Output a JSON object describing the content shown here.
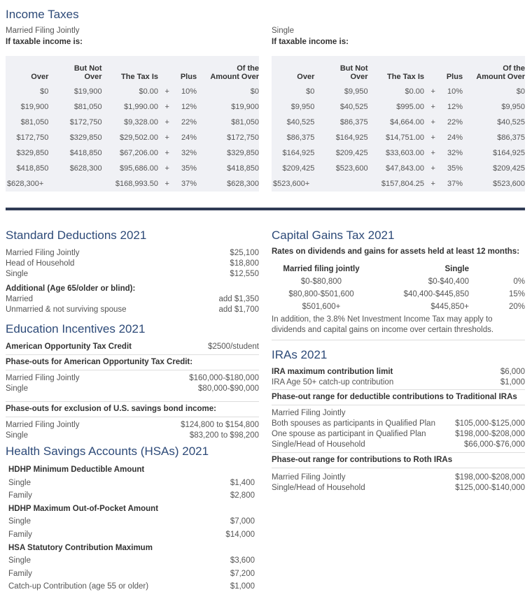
{
  "income_taxes": {
    "title": "Income Taxes",
    "tables": [
      {
        "label": "Married Filing Jointly",
        "condition": "If taxable income is:",
        "headers": [
          [
            "Over"
          ],
          [
            "But Not",
            "Over"
          ],
          [
            "The Tax Is"
          ],
          [
            "Plus"
          ],
          [
            "Of the",
            "Amount Over"
          ]
        ],
        "rows": [
          [
            "$0",
            "$19,900",
            "$0.00",
            "+",
            "10%",
            "$0"
          ],
          [
            "$19,900",
            "$81,050",
            "$1,990.00",
            "+",
            "12%",
            "$19,900"
          ],
          [
            "$81,050",
            "$172,750",
            "$9,328.00",
            "+",
            "22%",
            "$81,050"
          ],
          [
            "$172,750",
            "$329,850",
            "$29,502.00",
            "+",
            "24%",
            "$172,750"
          ],
          [
            "$329,850",
            "$418,850",
            "$67,206.00",
            "+",
            "32%",
            "$329,850"
          ],
          [
            "$418,850",
            "$628,300",
            "$95,686.00",
            "+",
            "35%",
            "$418,850"
          ],
          [
            "$628,300+",
            null,
            "$168,993.50",
            "+",
            "37%",
            "$628,300"
          ]
        ]
      },
      {
        "label": "Single",
        "condition": "If taxable income is:",
        "headers": [
          [
            "Over"
          ],
          [
            "But Not",
            "Over"
          ],
          [
            "The Tax Is"
          ],
          [
            "Plus"
          ],
          [
            "Of the",
            "Amount Over"
          ]
        ],
        "rows": [
          [
            "$0",
            "$9,950",
            "$0.00",
            "+",
            "10%",
            "$0"
          ],
          [
            "$9,950",
            "$40,525",
            "$995.00",
            "+",
            "12%",
            "$9,950"
          ],
          [
            "$40,525",
            "$86,375",
            "$4,664.00",
            "+",
            "22%",
            "$40,525"
          ],
          [
            "$86,375",
            "$164,925",
            "$14,751.00",
            "+",
            "24%",
            "$86,375"
          ],
          [
            "$164,925",
            "$209,425",
            "$33,603.00",
            "+",
            "32%",
            "$164,925"
          ],
          [
            "$209,425",
            "$523,600",
            "$47,843.00",
            "+",
            "35%",
            "$209,425"
          ],
          [
            "$523,600+",
            null,
            "$157,804.25",
            "+",
            "37%",
            "$523,600"
          ]
        ]
      }
    ]
  },
  "standard_deductions": {
    "title": "Standard Deductions 2021",
    "items": [
      {
        "label": "Married Filing Jointly",
        "value": "$25,100"
      },
      {
        "label": "Head of Household",
        "value": "$18,800"
      },
      {
        "label": "Single",
        "value": "$12,550"
      }
    ],
    "additional_heading": "Additional (Age 65/older or blind):",
    "additional": [
      {
        "label": "Married",
        "value": "add $1,350"
      },
      {
        "label": "Unmarried & not surviving spouse",
        "value": "add $1,700"
      }
    ]
  },
  "education": {
    "title": "Education Incentives 2021",
    "credit": {
      "label": "American Opportunity Tax Credit",
      "value": "$2500/student"
    },
    "groups": [
      {
        "heading": "Phase-outs for American Opportunity Tax Credit:",
        "items": [
          {
            "label": "Married Filing Jointly",
            "value": "$160,000-$180,000"
          },
          {
            "label": "Single",
            "value": "$80,000-$90,000"
          }
        ]
      },
      {
        "heading": "Phase-outs for exclusion of U.S. savings bond income:",
        "items": [
          {
            "label": "Married Filing Jointly",
            "value": "$124,800 to $154,800"
          },
          {
            "label": "Single",
            "value": "$83,200 to $98,200"
          }
        ]
      }
    ]
  },
  "hsa": {
    "title": "Health Savings Accounts (HSAs) 2021",
    "groups": [
      {
        "heading": "HDHP Minimum Deductible Amount",
        "items": [
          {
            "label": "Single",
            "value": "$1,400"
          },
          {
            "label": "Family",
            "value": "$2,800"
          }
        ]
      },
      {
        "heading": "HDHP Maximum Out-of-Pocket Amount",
        "items": [
          {
            "label": "Single",
            "value": "$7,000"
          },
          {
            "label": "Family",
            "value": "$14,000"
          }
        ]
      },
      {
        "heading": "HSA Statutory Contribution Maximum",
        "items": [
          {
            "label": "Single",
            "value": "$3,600"
          },
          {
            "label": "Family",
            "value": "$7,200"
          },
          {
            "label": "Catch-up Contribution (age 55 or older)",
            "value": "$1,000"
          }
        ]
      }
    ]
  },
  "capital_gains": {
    "title": "Capital Gains Tax 2021",
    "subtitle": "Rates on dividends and gains for assets held at least 12 months:",
    "headers": [
      "Married filing jointly",
      "Single"
    ],
    "rows": [
      [
        "$0-$80,800",
        "$0-$40,400",
        "0%"
      ],
      [
        "$80,800-$501,600",
        "$40,400-$445,850",
        "15%"
      ],
      [
        "$501,600+",
        "$445,850+",
        "20%"
      ]
    ],
    "note": "In addition, the 3.8% Net Investment Income Tax may apply to dividends and capital gains on income over certain thresholds."
  },
  "iras": {
    "title": "IRAs 2021",
    "limits": [
      {
        "label": "IRA maximum contribution limit",
        "value": "$6,000"
      },
      {
        "label": "IRA Age 50+ catch-up contribution",
        "value": "$1,000"
      }
    ],
    "traditional": {
      "heading": "Phase-out range for deductible contributions to Traditional IRAs",
      "subheading": "Married Filing Jointly",
      "items": [
        {
          "label": "Both spouses as participants in Qualified Plan",
          "value": "$105,000-$125,000"
        },
        {
          "label": "One spouse as participant in Qualified Plan",
          "value": "$198,000-$208,000"
        },
        {
          "label": "Single/Head of Household",
          "value": "$66,000-$76,000"
        }
      ]
    },
    "roth": {
      "heading": "Phase-out range for contributions to Roth IRAs",
      "items": [
        {
          "label": "Married Filing Jointly",
          "value": "$198,000-$208,000"
        },
        {
          "label": "Single/Head of Household",
          "value": "$125,000-$140,000"
        }
      ]
    }
  }
}
